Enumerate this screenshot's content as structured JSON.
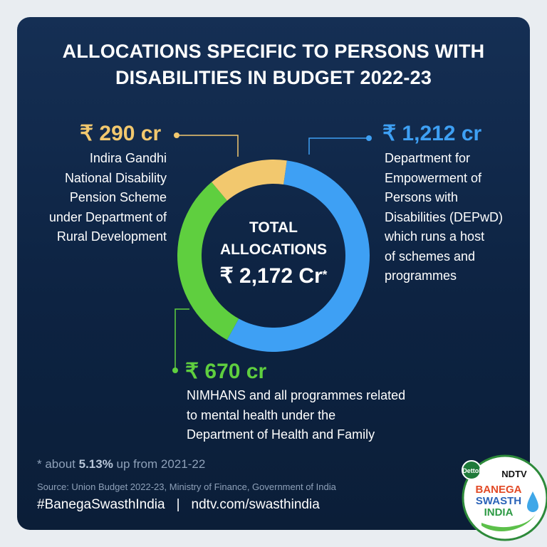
{
  "header": {
    "title_line1": "ALLOCATIONS SPECIFIC TO PERSONS WITH",
    "title_line2": "DISABILITIES IN BUDGET 2022-23"
  },
  "center": {
    "line1": "TOTAL",
    "line2": "ALLOCATIONS",
    "total": "₹ 2,172 Cr",
    "total_mark": "*"
  },
  "segments": [
    {
      "value_label": "₹ 1,212 cr",
      "lines": [
        "Department for",
        "Empowerment of",
        "Persons with",
        "Disabilities (DEPwD)",
        "which runs a host",
        "of schemes and",
        "programmes"
      ]
    },
    {
      "value_label": "₹ 670 cr",
      "lines": [
        "NIMHANS and all programmes related",
        "to mental health under the",
        "Department of Health and Family"
      ]
    },
    {
      "value_label": "₹ 290 cr",
      "lines": [
        "Indira Gandhi",
        "National Disability",
        "Pension Scheme",
        "under Department of",
        "Rural Development"
      ]
    }
  ],
  "chart_data": {
    "type": "pie",
    "donut": true,
    "unit": "₹ cr",
    "total": 2172,
    "series": [
      {
        "name": "Department for Empowerment of Persons with Disabilities (DEPwD)",
        "value": 1212,
        "color": "#3ea0f4"
      },
      {
        "name": "NIMHANS and all programmes related to mental health under the Department of Health and Family",
        "value": 670,
        "color": "#5fcf3f"
      },
      {
        "name": "Indira Gandhi National Disability Pension Scheme under Department of Rural Development",
        "value": 290,
        "color": "#f2c86e"
      }
    ]
  },
  "footer": {
    "note_prefix": "* about ",
    "note_bold": "5.13%",
    "note_suffix": " up from 2021-22",
    "source": "Source: Union Budget 2022-23, Ministry of Finance, Government of India",
    "hashtag": "#BanegaSwasthIndia",
    "separator": "|",
    "link": "ndtv.com/swasthindia"
  },
  "logo": {
    "dettol": "Dettol",
    "ndtv": "NDTV",
    "line1": "BANEGA",
    "line2": "SWASTH",
    "line3": "INDIA"
  },
  "colors": {
    "background": "#0d2342",
    "blue": "#3ea0f4",
    "green": "#5fcf3f",
    "yellow": "#f2c86e"
  }
}
